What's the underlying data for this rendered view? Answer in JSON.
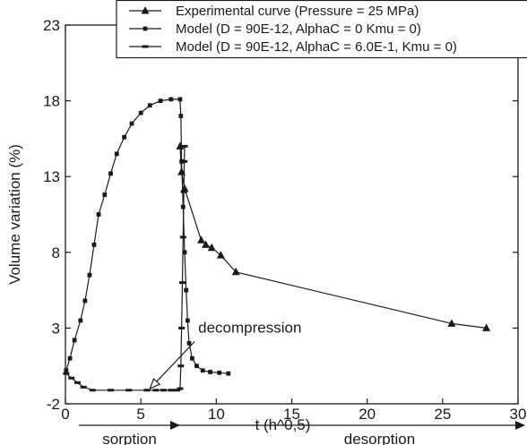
{
  "chart_data": {
    "type": "line",
    "xlabel": "t (h^0,5)",
    "ylabel": "Volume variation (%)",
    "xlim": [
      0,
      30
    ],
    "ylim": [
      -2,
      23
    ],
    "x_ticks": [
      0,
      5,
      10,
      15,
      20,
      25,
      30
    ],
    "y_ticks": [
      -2,
      3,
      8,
      13,
      18,
      23
    ],
    "legend_placement": "top-right",
    "series": [
      {
        "name": "Experimental curve (Pressure = 25 MPa)",
        "marker": "triangle",
        "color": "#1a1a1a",
        "points": [
          [
            7.6,
            15.0
          ],
          [
            7.7,
            13.3
          ],
          [
            7.9,
            12.2
          ],
          [
            9.0,
            8.8
          ],
          [
            9.3,
            8.5
          ],
          [
            9.7,
            8.3
          ],
          [
            10.3,
            7.8
          ],
          [
            11.3,
            6.7
          ],
          [
            25.6,
            3.3
          ],
          [
            27.9,
            3.0
          ]
        ]
      },
      {
        "name": "Model (D = 90E-12, AlphaC = 0 Kmu = 0)",
        "marker": "square",
        "color": "#1a1a1a",
        "points": [
          [
            0.05,
            0.2
          ],
          [
            0.3,
            1.0
          ],
          [
            0.6,
            2.2
          ],
          [
            1.0,
            3.5
          ],
          [
            1.3,
            4.8
          ],
          [
            1.6,
            6.5
          ],
          [
            1.9,
            8.5
          ],
          [
            2.2,
            10.5
          ],
          [
            2.6,
            11.8
          ],
          [
            3.0,
            13.2
          ],
          [
            3.4,
            14.5
          ],
          [
            3.9,
            15.6
          ],
          [
            4.4,
            16.5
          ],
          [
            5.0,
            17.2
          ],
          [
            5.6,
            17.7
          ],
          [
            6.3,
            18.0
          ],
          [
            7.0,
            18.1
          ],
          [
            7.6,
            18.1
          ],
          [
            7.65,
            17.0
          ],
          [
            7.7,
            14.0
          ],
          [
            7.8,
            11.0
          ],
          [
            7.9,
            8.0
          ],
          [
            8.0,
            5.5
          ],
          [
            8.1,
            3.5
          ],
          [
            8.2,
            2.0
          ],
          [
            8.4,
            1.0
          ],
          [
            8.7,
            0.5
          ],
          [
            9.1,
            0.2
          ],
          [
            9.6,
            0.1
          ],
          [
            10.2,
            0.05
          ],
          [
            10.8,
            0.0
          ]
        ]
      },
      {
        "name": "Model (D = 90E-12, AlphaC = 6.0E-1, Kmu = 0)",
        "marker": "dash",
        "color": "#1a1a1a",
        "points": [
          [
            0.05,
            0.0
          ],
          [
            0.4,
            -0.3
          ],
          [
            0.8,
            -0.6
          ],
          [
            1.2,
            -0.9
          ],
          [
            1.8,
            -1.1
          ],
          [
            3.0,
            -1.1
          ],
          [
            4.2,
            -1.1
          ],
          [
            5.4,
            -1.1
          ],
          [
            6.0,
            -1.1
          ],
          [
            6.5,
            -1.1
          ],
          [
            7.0,
            -1.1
          ],
          [
            7.4,
            -1.1
          ],
          [
            7.6,
            -1.0
          ],
          [
            7.65,
            0.5
          ],
          [
            7.7,
            3.0
          ],
          [
            7.75,
            6.0
          ],
          [
            7.8,
            9.0
          ],
          [
            7.85,
            12.0
          ],
          [
            7.88,
            14.0
          ],
          [
            7.9,
            15.0
          ]
        ]
      }
    ],
    "annotations": [
      {
        "text": "decompression",
        "x": 8.8,
        "y": 2.7
      }
    ],
    "phases": [
      {
        "label": "sorption",
        "x_from": 0.9,
        "x_to": 7.6
      },
      {
        "label": "desorption",
        "x_from": 7.6,
        "x_to": 30
      }
    ]
  }
}
